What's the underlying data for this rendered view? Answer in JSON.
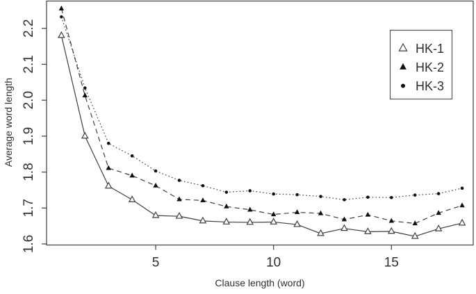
{
  "figure": {
    "background": "#ffffff",
    "foreground": "#2e2e2e",
    "line_color": "#3d3d3d"
  },
  "chart_data": {
    "type": "line",
    "title": "",
    "xlabel": "Clause length (word)",
    "ylabel": "Average word length",
    "x": [
      1,
      2,
      3,
      4,
      5,
      6,
      7,
      8,
      9,
      10,
      11,
      12,
      13,
      14,
      15,
      16,
      17,
      18
    ],
    "xticks": [
      "5",
      "10",
      "15"
    ],
    "yticks": [
      "1.6",
      "1.7",
      "1.8",
      "1.9",
      "2.0",
      "2.1",
      "2.2"
    ],
    "xlim": [
      0.37,
      18.47
    ],
    "ylim": [
      1.597,
      2.276
    ],
    "grid": false,
    "legend_position": "top-right",
    "series": [
      {
        "name": "HK-1",
        "marker": "open-triangle",
        "marker_glyph": "△",
        "line_style": "solid",
        "values": [
          2.18,
          1.9,
          1.761,
          1.723,
          1.679,
          1.677,
          1.664,
          1.661,
          1.66,
          1.661,
          1.654,
          1.629,
          1.643,
          1.634,
          1.635,
          1.621,
          1.642,
          1.658
        ]
      },
      {
        "name": "HK-2",
        "marker": "filled-triangle",
        "marker_glyph": "▲",
        "line_style": "dashed",
        "values": [
          2.255,
          2.013,
          1.811,
          1.79,
          1.762,
          1.724,
          1.721,
          1.704,
          1.695,
          1.682,
          1.688,
          1.685,
          1.668,
          1.681,
          1.664,
          1.657,
          1.686,
          1.707
        ]
      },
      {
        "name": "HK-3",
        "marker": "filled-circle",
        "marker_glyph": "●",
        "line_style": "dotted",
        "values": [
          2.232,
          2.034,
          1.88,
          1.845,
          1.803,
          1.777,
          1.762,
          1.744,
          1.748,
          1.739,
          1.737,
          1.732,
          1.723,
          1.73,
          1.729,
          1.736,
          1.74,
          1.755
        ]
      }
    ]
  }
}
